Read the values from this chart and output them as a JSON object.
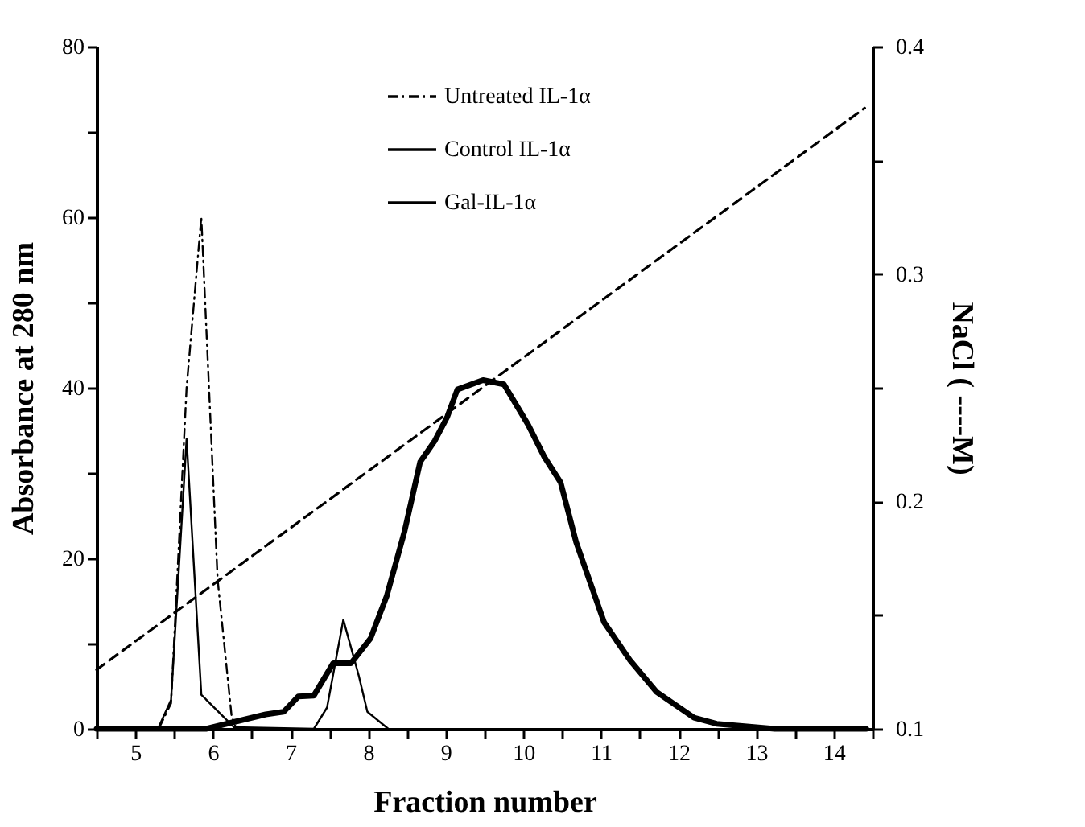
{
  "chart_data": {
    "type": "line",
    "xlabel": "Fraction number",
    "ylabel": "Absorbance at 280 nm",
    "y2label": "NaCl ( ----M)",
    "xlim": [
      4.5,
      14.5
    ],
    "xticks": [
      {
        "value": 4.5,
        "label": null
      },
      5,
      {
        "value": 5.5,
        "label": null
      },
      6,
      {
        "value": 6.5,
        "label": null
      },
      7,
      {
        "value": 7.5,
        "label": null
      },
      8,
      {
        "value": 8.5,
        "label": null
      },
      9,
      {
        "value": 9.5,
        "label": null
      },
      10,
      {
        "value": 10.5,
        "label": null
      },
      11,
      {
        "value": 11.5,
        "label": null
      },
      12,
      {
        "value": 12.5,
        "label": null
      },
      13,
      {
        "value": 13.5,
        "label": null
      },
      14,
      {
        "value": 14.5,
        "label": null
      }
    ],
    "ylim": [
      0,
      80
    ],
    "yticks": [
      0,
      {
        "value": 10,
        "label": null
      },
      20,
      {
        "value": 30,
        "label": null
      },
      40,
      {
        "value": 50,
        "label": null
      },
      60,
      {
        "value": 70,
        "label": null
      },
      80
    ],
    "y2lim": [
      0.1,
      0.4
    ],
    "y2ticks": [
      0.1,
      {
        "value": 0.15,
        "label": null
      },
      0.2,
      {
        "value": 0.25,
        "label": null
      },
      0.3,
      {
        "value": 0.35,
        "label": null
      },
      0.4
    ],
    "grid": false,
    "legend": "top",
    "marker": "none",
    "series": [
      {
        "name": "Untreated IL-1α",
        "color": "#000000",
        "line_style": "dashdot",
        "x": [
          4.5,
          5.3,
          5.46,
          5.66,
          5.85,
          6.06,
          6.24,
          6.3
        ],
        "values": [
          0,
          0,
          3,
          40,
          60,
          17.5,
          1.5,
          0
        ]
      },
      {
        "name": "Control IL-1α",
        "color": "#000000",
        "line_style": "solid",
        "x": [
          4.5,
          5.29,
          5.46,
          5.66,
          5.85,
          6.27,
          7.3,
          7.47,
          7.68,
          7.88,
          7.99,
          8.26
        ],
        "values": [
          0,
          0,
          3.4,
          34,
          4,
          0.2,
          0,
          2.5,
          12.8,
          6.2,
          2,
          0
        ]
      },
      {
        "name": "Gal-IL-1α",
        "color": "#000000",
        "line_style": "solid",
        "x": [
          4.5,
          5.91,
          6.27,
          6.68,
          6.91,
          7.1,
          7.3,
          7.55,
          7.78,
          8.03,
          8.24,
          8.47,
          8.67,
          8.86,
          9.02,
          9.15,
          9.48,
          9.75,
          10.06,
          10.27,
          10.48,
          10.68,
          11.04,
          11.37,
          11.72,
          12.2,
          12.49,
          13.24,
          14.42
        ],
        "values": [
          0,
          0,
          0.8,
          1.7,
          2,
          3.8,
          3.9,
          7.7,
          7.7,
          10.6,
          15.6,
          23.2,
          31.3,
          33.8,
          36.6,
          39.8,
          40.9,
          40.4,
          35.7,
          31.9,
          28.9,
          21.9,
          12.5,
          8.1,
          4.3,
          1.3,
          0.6,
          0,
          0
        ]
      },
      {
        "color": "#000000",
        "line_style": "dashed",
        "axis": "y2",
        "x": [
          4.5,
          14.4
        ],
        "values": [
          0.126,
          0.373
        ]
      }
    ]
  }
}
